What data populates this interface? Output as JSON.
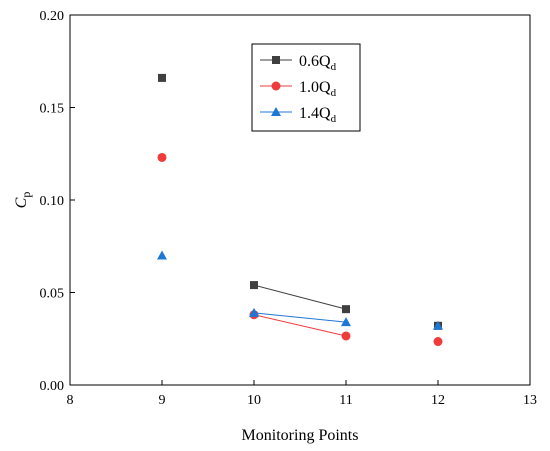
{
  "chart_data": {
    "type": "scatter",
    "xlabel": "Monitoring Points",
    "ylabel": "C",
    "ylabel_sub": "p",
    "xlim": [
      8,
      13
    ],
    "ylim": [
      0.0,
      0.2
    ],
    "xticks": [
      "8",
      "9",
      "10",
      "11",
      "12",
      "13"
    ],
    "yticks": [
      "0.00",
      "0.05",
      "0.10",
      "0.15",
      "0.20"
    ],
    "grid": false,
    "legend_position": "top-right",
    "series": [
      {
        "name": "0.6Q",
        "name_sub": "d",
        "color": "#3f3f3f",
        "marker": "square",
        "points": [
          [
            9,
            0.166
          ],
          [
            10,
            0.054
          ],
          [
            11,
            0.041
          ],
          [
            12,
            0.032
          ]
        ],
        "connected_segment": [
          [
            10,
            0.054
          ],
          [
            11,
            0.041
          ]
        ]
      },
      {
        "name": "1.0Q",
        "name_sub": "d",
        "color": "#ee3b3b",
        "marker": "circle",
        "points": [
          [
            9,
            0.123
          ],
          [
            10,
            0.038
          ],
          [
            11,
            0.0265
          ],
          [
            12,
            0.0235
          ]
        ],
        "connected_segment": [
          [
            10,
            0.038
          ],
          [
            11,
            0.0265
          ]
        ]
      },
      {
        "name": "1.4Q",
        "name_sub": "d",
        "color": "#1f77d4",
        "marker": "triangle",
        "points": [
          [
            9,
            0.07
          ],
          [
            10,
            0.039
          ],
          [
            11,
            0.034
          ],
          [
            12,
            0.032
          ]
        ],
        "connected_segment": [
          [
            10,
            0.039
          ],
          [
            11,
            0.034
          ]
        ]
      }
    ]
  }
}
